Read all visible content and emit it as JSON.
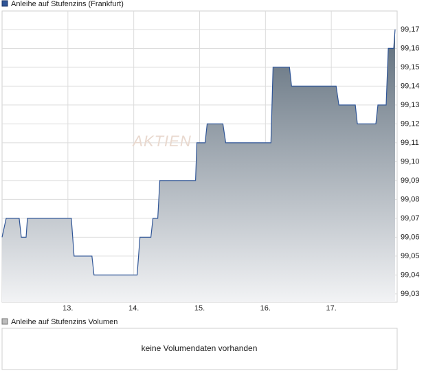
{
  "chart_data": {
    "type": "area",
    "title": "Anleihe auf Stufenzins (Frankfurt)",
    "watermark": "AKTIEN",
    "color": "#2f5597",
    "fill_top": "#5e6d7b",
    "fill_bottom": "#f2f3f5",
    "grid": true,
    "xlim": [
      12,
      18
    ],
    "xticks": [
      {
        "value": 13,
        "label": "13."
      },
      {
        "value": 14,
        "label": "14."
      },
      {
        "value": 15,
        "label": "15."
      },
      {
        "value": 16,
        "label": "16."
      },
      {
        "value": 17,
        "label": "17."
      }
    ],
    "ylim": [
      99.0256,
      99.1798
    ],
    "yticks": [
      {
        "value": 99.03,
        "label": "99,03"
      },
      {
        "value": 99.04,
        "label": "99,04"
      },
      {
        "value": 99.05,
        "label": "99,05"
      },
      {
        "value": 99.06,
        "label": "99,06"
      },
      {
        "value": 99.07,
        "label": "99,07"
      },
      {
        "value": 99.08,
        "label": "99,08"
      },
      {
        "value": 99.09,
        "label": "99,09"
      },
      {
        "value": 99.1,
        "label": "99,10"
      },
      {
        "value": 99.11,
        "label": "99,11"
      },
      {
        "value": 99.12,
        "label": "99,12"
      },
      {
        "value": 99.13,
        "label": "99,13"
      },
      {
        "value": 99.14,
        "label": "99,14"
      },
      {
        "value": 99.15,
        "label": "99,15"
      },
      {
        "value": 99.16,
        "label": "99,16"
      },
      {
        "value": 99.17,
        "label": "99,17"
      }
    ],
    "x": [
      12.0,
      12.063,
      12.26,
      12.292,
      12.365,
      12.385,
      13.052,
      13.094,
      13.365,
      13.396,
      14.052,
      14.094,
      14.26,
      14.292,
      14.365,
      14.396,
      14.938,
      14.958,
      15.083,
      15.115,
      15.354,
      15.396,
      16.083,
      16.115,
      16.365,
      16.396,
      17.073,
      17.115,
      17.365,
      17.396,
      17.677,
      17.708,
      17.833,
      17.865,
      17.948,
      17.969
    ],
    "values": [
      99.06,
      99.07,
      99.07,
      99.06,
      99.06,
      99.07,
      99.07,
      99.05,
      99.05,
      99.04,
      99.04,
      99.06,
      99.06,
      99.07,
      99.07,
      99.09,
      99.09,
      99.11,
      99.11,
      99.12,
      99.12,
      99.11,
      99.11,
      99.15,
      99.15,
      99.14,
      99.14,
      99.13,
      99.13,
      99.12,
      99.12,
      99.13,
      99.13,
      99.16,
      99.16,
      99.17
    ],
    "volume_title": "Anleihe auf Stufenzins Volumen",
    "volume_message": "keine Volumendaten vorhanden"
  }
}
